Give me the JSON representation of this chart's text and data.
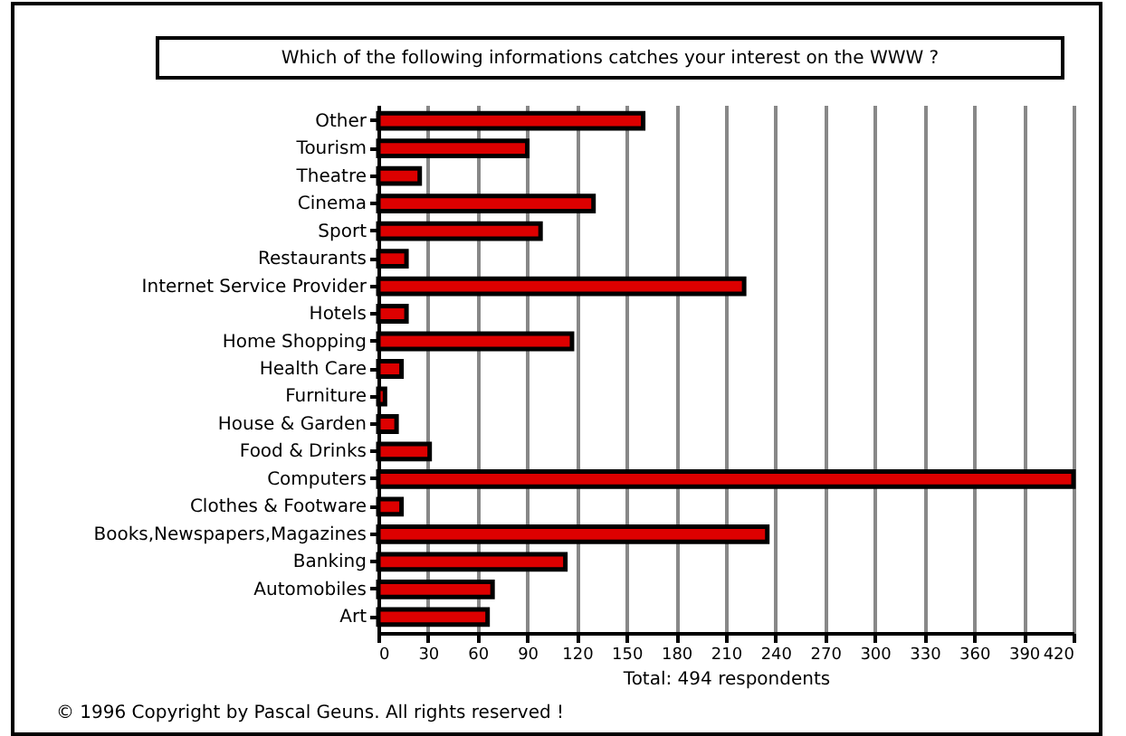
{
  "chart_data": {
    "type": "bar",
    "orientation": "horizontal",
    "title": "Which of the following informations catches your interest on the WWW ?",
    "xlabel": "Total: 494 respondents",
    "categories": [
      "Other",
      "Tourism",
      "Theatre",
      "Cinema",
      "Sport",
      "Restaurants",
      "Internet Service Provider",
      "Hotels",
      "Home Shopping",
      "Health Care",
      "Furniture",
      "House & Garden",
      "Food & Drinks",
      "Computers",
      "Clothes & Footware",
      "Books,Newspapers,Magazines",
      "Banking",
      "Automobiles",
      "Art"
    ],
    "values": [
      160,
      90,
      25,
      130,
      98,
      17,
      221,
      17,
      117,
      14,
      4,
      11,
      31,
      420,
      14,
      235,
      113,
      69,
      66
    ],
    "color": "#dd0000",
    "xlim": [
      0,
      420
    ],
    "xticks": [
      0,
      30,
      60,
      90,
      120,
      150,
      180,
      210,
      240,
      270,
      300,
      330,
      360,
      390,
      420
    ],
    "grid": "x",
    "annotations": [
      "© 1996   Copyright by Pascal Geuns.  All rights reserved !"
    ]
  }
}
